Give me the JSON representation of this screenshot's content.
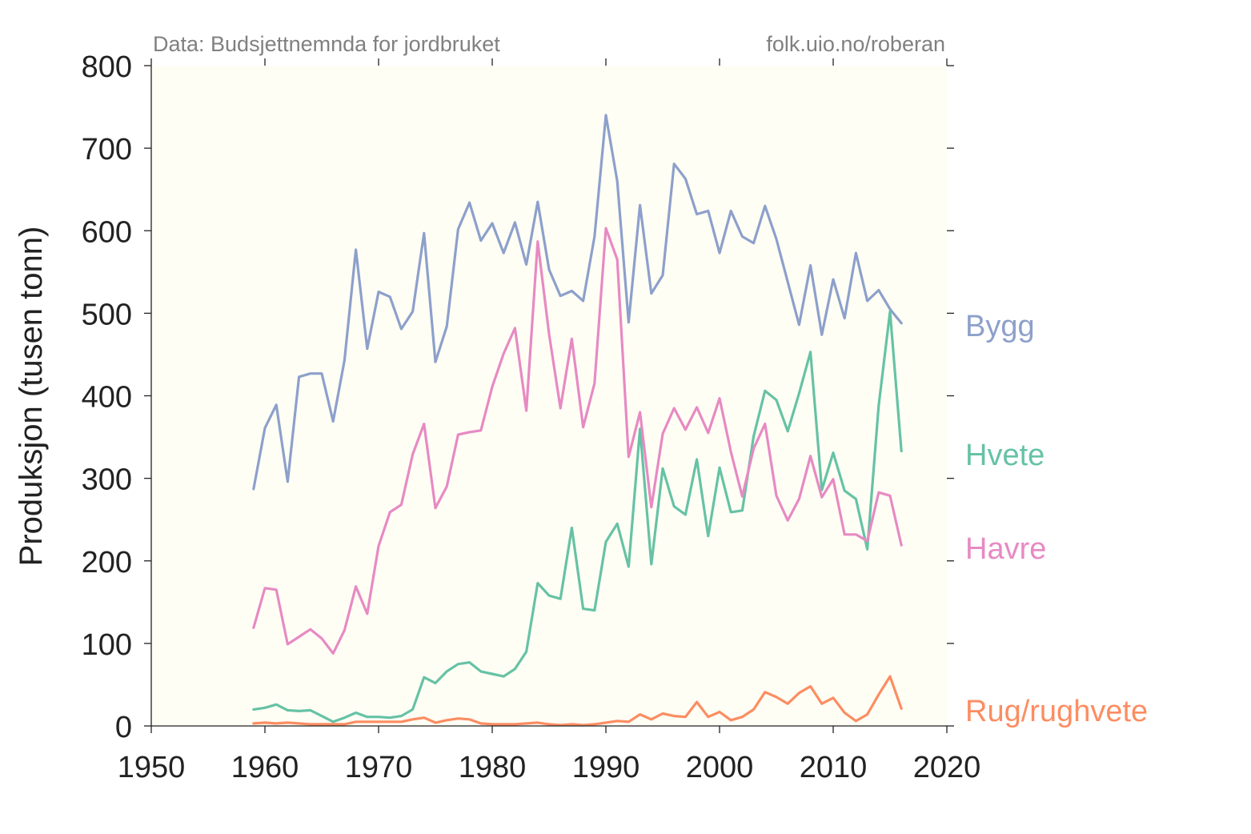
{
  "chart_data": {
    "type": "line",
    "source_note": "Data: Budsjettnemnda for jordbruket",
    "credit": "folk.uio.no/roberan",
    "ylabel": "Produksjon (tusen tonn)",
    "xlabel": "",
    "xlim": [
      1950,
      2020
    ],
    "ylim": [
      0,
      800
    ],
    "xticks": [
      1950,
      1960,
      1970,
      1980,
      1990,
      2000,
      2010,
      2020
    ],
    "yticks": [
      0,
      100,
      200,
      300,
      400,
      500,
      600,
      700,
      800
    ],
    "grid": false,
    "background_color": "#fffef5",
    "legend": "right-of-plot series labels",
    "x": [
      1959,
      1960,
      1961,
      1962,
      1963,
      1964,
      1965,
      1966,
      1967,
      1968,
      1969,
      1970,
      1971,
      1972,
      1973,
      1974,
      1975,
      1976,
      1977,
      1978,
      1979,
      1980,
      1981,
      1982,
      1983,
      1984,
      1985,
      1986,
      1987,
      1988,
      1989,
      1990,
      1991,
      1992,
      1993,
      1994,
      1995,
      1996,
      1997,
      1998,
      1999,
      2000,
      2001,
      2002,
      2003,
      2004,
      2005,
      2006,
      2007,
      2008,
      2009,
      2010,
      2011,
      2012,
      2013,
      2014,
      2015,
      2016
    ],
    "series": [
      {
        "name": "Bygg",
        "color": "#8da0cb",
        "values": [
          287,
          361,
          389,
          296,
          423,
          427,
          427,
          369,
          443,
          577,
          457,
          526,
          520,
          481,
          502,
          597,
          441,
          484,
          602,
          634,
          588,
          609,
          573,
          610,
          559,
          635,
          553,
          521,
          527,
          515,
          593,
          740,
          660,
          489,
          631,
          524,
          546,
          681,
          663,
          620,
          624,
          573,
          624,
          593,
          585,
          630,
          590,
          538,
          486,
          558,
          474,
          541,
          494,
          573,
          515,
          528,
          505,
          488
        ]
      },
      {
        "name": "Hvete",
        "color": "#66c2a5",
        "values": [
          20,
          22,
          26,
          19,
          18,
          19,
          12,
          5,
          10,
          16,
          11,
          11,
          10,
          12,
          20,
          59,
          52,
          66,
          75,
          77,
          66,
          63,
          60,
          69,
          90,
          173,
          158,
          154,
          240,
          142,
          140,
          223,
          245,
          193,
          360,
          196,
          312,
          266,
          256,
          323,
          230,
          313,
          259,
          261,
          351,
          406,
          395,
          357,
          403,
          453,
          286,
          331,
          285,
          275,
          214,
          388,
          502,
          333
        ]
      },
      {
        "name": "Havre",
        "color": "#e78ac3",
        "values": [
          119,
          167,
          165,
          99,
          108,
          117,
          106,
          88,
          116,
          169,
          136,
          218,
          259,
          268,
          329,
          366,
          264,
          290,
          353,
          356,
          358,
          411,
          451,
          482,
          382,
          587,
          475,
          385,
          469,
          362,
          415,
          603,
          565,
          326,
          380,
          265,
          354,
          385,
          359,
          386,
          355,
          397,
          332,
          278,
          336,
          366,
          279,
          249,
          275,
          327,
          277,
          299,
          232,
          232,
          224,
          283,
          279,
          219
        ]
      },
      {
        "name": "Rug/rughvete",
        "color": "#fc8d62",
        "values": [
          3,
          4,
          3,
          4,
          3,
          2,
          2,
          2,
          2,
          5,
          5,
          5,
          5,
          5,
          8,
          10,
          4,
          7,
          9,
          8,
          3,
          2,
          2,
          2,
          3,
          4,
          2,
          1,
          2,
          1,
          2,
          4,
          6,
          5,
          14,
          8,
          15,
          12,
          11,
          29,
          11,
          17,
          7,
          11,
          20,
          41,
          35,
          27,
          40,
          48,
          27,
          34,
          16,
          6,
          14,
          38,
          60,
          21
        ]
      }
    ]
  }
}
